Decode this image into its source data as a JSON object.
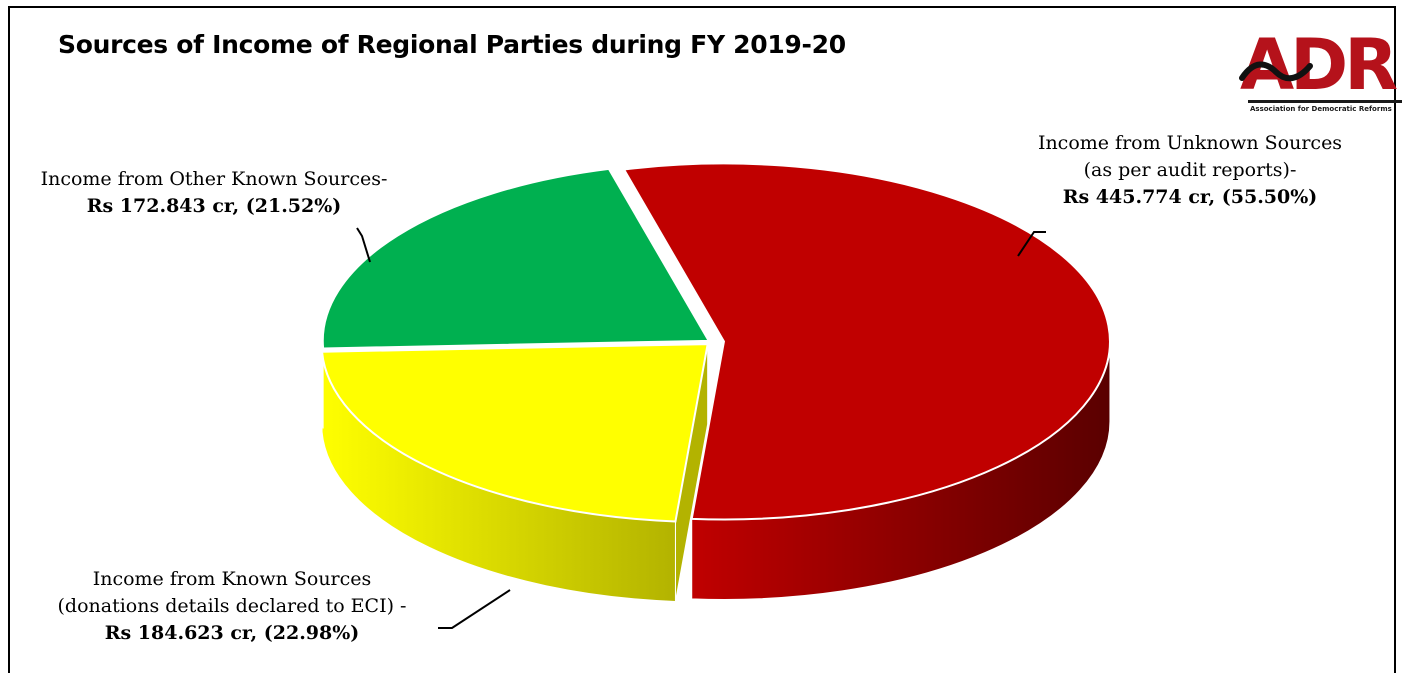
{
  "chart_data": {
    "type": "pie",
    "title": "Sources of Income of Regional Parties during FY 2019-20",
    "slices": [
      {
        "label": "Income from Unknown Sources (as per audit reports)-",
        "label_lines": [
          "Income from Unknown Sources",
          "(as per audit reports)-"
        ],
        "value_text": "Rs 445.774 cr, (55.50%)",
        "value": 445.774,
        "percent": 55.5,
        "color": "#c00000",
        "side_color": "#5a0000"
      },
      {
        "label": "Income from Known Sources (donations details declared to ECI) -",
        "label_lines": [
          "Income from Known Sources",
          "(donations details declared to ECI) -"
        ],
        "value_text": "Rs 184.623 cr, (22.98%)",
        "value": 184.623,
        "percent": 22.98,
        "color": "#ffff00",
        "side_color": "#b3b300"
      },
      {
        "label": "Income from Other Known Sources-",
        "label_lines": [
          "Income from Other Known Sources-"
        ],
        "value_text": "Rs 172.843 cr, (21.52%)",
        "value": 172.843,
        "percent": 21.52,
        "color": "#00b050",
        "side_color": "#006b30"
      }
    ]
  },
  "logo": {
    "text": "ADR",
    "subtitle": "Association for Democratic Reforms",
    "color": "#b5121b"
  }
}
